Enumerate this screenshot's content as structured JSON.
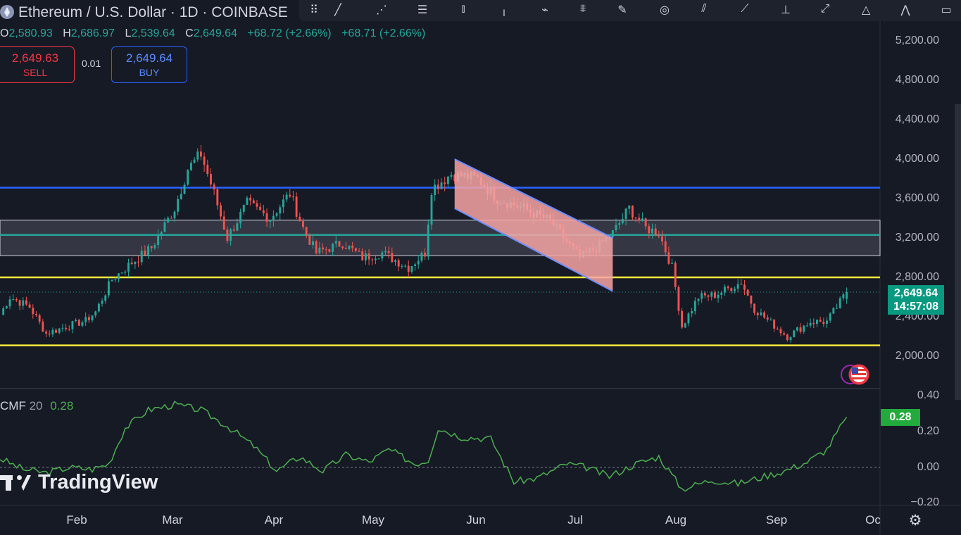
{
  "header": {
    "title": "Ethereum / U.S. Dollar · 1D · COINBASE",
    "ohlc": [
      {
        "key": "O",
        "value": "2,580.93"
      },
      {
        "key": "H",
        "value": "2,686.97"
      },
      {
        "key": "L",
        "value": "2,539.64"
      },
      {
        "key": "C",
        "value": "2,649.64"
      }
    ],
    "change_1": "+68.72 (+2.66%)",
    "change_2": "+68.71 (+2.66%)"
  },
  "trade": {
    "sell_price": "2,649.63",
    "sell_label": "SELL",
    "spread": "0.01",
    "buy_price": "2,649.64",
    "buy_label": "BUY"
  },
  "price_tag": {
    "price": "2,649.64",
    "countdown": "14:57:08"
  },
  "y_ticks": [
    "5,200.00",
    "4,800.00",
    "4,400.00",
    "4,000.00",
    "3,600.00",
    "3,200.00",
    "2,800.00",
    "2,400.00",
    "2,000.00"
  ],
  "cmf": {
    "name": "CMF",
    "length": "20",
    "value": "0.28",
    "y_ticks": [
      "0.40",
      "0.20",
      "0.00",
      "−0.20"
    ],
    "tag": "0.28"
  },
  "x_ticks": [
    "Feb",
    "Mar",
    "Apr",
    "May",
    "Jun",
    "Jul",
    "Aug",
    "Sep",
    "Oc"
  ],
  "branding": "TradingView",
  "colors": {
    "up": "#26a69a",
    "down": "#ef5350",
    "blue_line": "#2962ff",
    "yellow_line": "#ffeb3b",
    "teal_line": "#26a69a",
    "cmf_line": "#4caf50",
    "channel_fill": "#f7a5a5"
  },
  "chart_data": [
    {
      "type": "candlestick",
      "title": "Ethereum / U.S. Dollar · 1D · COINBASE",
      "ylim": [
        1900,
        5400
      ],
      "x_range": [
        "2024-01-11",
        "2024-10-02"
      ],
      "horizontal_levels": [
        {
          "price": 3710,
          "color": "#2962ff"
        },
        {
          "price": 3230,
          "color": "#26a69a"
        },
        {
          "price": 2800,
          "color": "#ffeb3b"
        },
        {
          "price": 2110,
          "color": "#ffeb3b"
        }
      ],
      "zone": {
        "from": 3020,
        "to": 3380
      },
      "channel": [
        {
          "date": "2024-05-28",
          "price": 4000
        },
        {
          "date": "2024-07-15",
          "price": 3200
        },
        {
          "date": "2024-07-15",
          "price": 2660
        },
        {
          "date": "2024-05-28",
          "price": 3500
        }
      ],
      "anchors": [
        [
          "2024-01-11",
          2420
        ],
        [
          "2024-01-14",
          2600
        ],
        [
          "2024-01-20",
          2500
        ],
        [
          "2024-01-25",
          2230
        ],
        [
          "2024-01-31",
          2300
        ],
        [
          "2024-02-06",
          2360
        ],
        [
          "2024-02-09",
          2450
        ],
        [
          "2024-02-14",
          2780
        ],
        [
          "2024-02-20",
          2950
        ],
        [
          "2024-02-26",
          3100
        ],
        [
          "2024-03-04",
          3500
        ],
        [
          "2024-03-08",
          3900
        ],
        [
          "2024-03-12",
          4050
        ],
        [
          "2024-03-16",
          3650
        ],
        [
          "2024-03-20",
          3200
        ],
        [
          "2024-03-26",
          3550
        ],
        [
          "2024-04-02",
          3400
        ],
        [
          "2024-04-08",
          3650
        ],
        [
          "2024-04-12",
          3300
        ],
        [
          "2024-04-16",
          3050
        ],
        [
          "2024-04-24",
          3150
        ],
        [
          "2024-04-30",
          3000
        ],
        [
          "2024-05-06",
          3050
        ],
        [
          "2024-05-14",
          2900
        ],
        [
          "2024-05-19",
          3050
        ],
        [
          "2024-05-21",
          3700
        ],
        [
          "2024-05-27",
          3850
        ],
        [
          "2024-06-04",
          3800
        ],
        [
          "2024-06-10",
          3600
        ],
        [
          "2024-06-18",
          3500
        ],
        [
          "2024-06-26",
          3370
        ],
        [
          "2024-07-05",
          3000
        ],
        [
          "2024-07-10",
          3100
        ],
        [
          "2024-07-15",
          3250
        ],
        [
          "2024-07-20",
          3500
        ],
        [
          "2024-07-25",
          3300
        ],
        [
          "2024-07-29",
          3250
        ],
        [
          "2024-08-02",
          2900
        ],
        [
          "2024-08-05",
          2300
        ],
        [
          "2024-08-10",
          2600
        ],
        [
          "2024-08-15",
          2620
        ],
        [
          "2024-08-23",
          2750
        ],
        [
          "2024-08-27",
          2480
        ],
        [
          "2024-09-06",
          2200
        ],
        [
          "2024-09-13",
          2350
        ],
        [
          "2024-09-18",
          2350
        ],
        [
          "2024-09-24",
          2649.64
        ]
      ],
      "last": {
        "open": 2580.93,
        "high": 2686.97,
        "low": 2539.64,
        "close": 2649.64
      }
    },
    {
      "type": "line",
      "title": "CMF 20",
      "ylim": [
        -0.2,
        0.4
      ],
      "series": [
        {
          "name": "CMF",
          "values": [
            [
              "2024-01-11",
              0.05
            ],
            [
              "2024-01-18",
              -0.01
            ],
            [
              "2024-01-25",
              -0.03
            ],
            [
              "2024-02-01",
              0.0
            ],
            [
              "2024-02-08",
              -0.01
            ],
            [
              "2024-02-13",
              0.02
            ],
            [
              "2024-02-18",
              0.22
            ],
            [
              "2024-02-25",
              0.32
            ],
            [
              "2024-03-04",
              0.35
            ],
            [
              "2024-03-12",
              0.32
            ],
            [
              "2024-03-20",
              0.23
            ],
            [
              "2024-03-28",
              0.12
            ],
            [
              "2024-04-04",
              -0.02
            ],
            [
              "2024-04-11",
              0.06
            ],
            [
              "2024-04-18",
              -0.02
            ],
            [
              "2024-04-25",
              0.07
            ],
            [
              "2024-05-02",
              0.03
            ],
            [
              "2024-05-08",
              0.1
            ],
            [
              "2024-05-16",
              0.02
            ],
            [
              "2024-05-20",
              0.04
            ],
            [
              "2024-05-23",
              0.22
            ],
            [
              "2024-05-30",
              0.17
            ],
            [
              "2024-06-08",
              0.16
            ],
            [
              "2024-06-15",
              -0.08
            ],
            [
              "2024-06-22",
              -0.06
            ],
            [
              "2024-07-01",
              0.02
            ],
            [
              "2024-07-07",
              0.0
            ],
            [
              "2024-07-14",
              -0.05
            ],
            [
              "2024-07-22",
              0.02
            ],
            [
              "2024-07-29",
              0.06
            ],
            [
              "2024-08-05",
              -0.12
            ],
            [
              "2024-08-14",
              -0.07
            ],
            [
              "2024-08-22",
              -0.09
            ],
            [
              "2024-08-30",
              -0.05
            ],
            [
              "2024-09-05",
              -0.02
            ],
            [
              "2024-09-12",
              0.03
            ],
            [
              "2024-09-18",
              0.1
            ],
            [
              "2024-09-24",
              0.28
            ]
          ]
        }
      ]
    }
  ]
}
